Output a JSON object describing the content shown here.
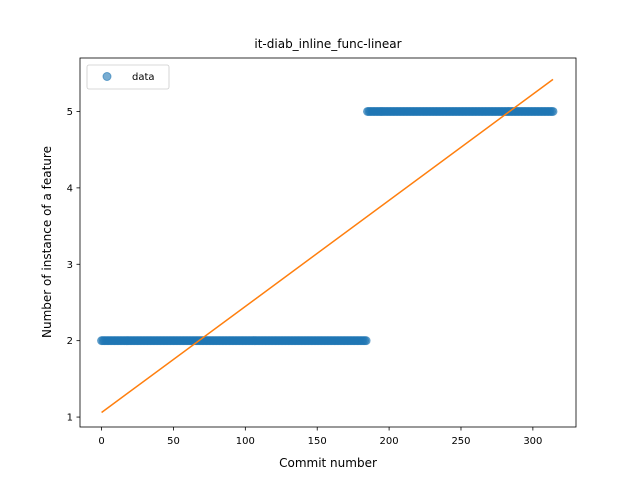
{
  "chart_data": {
    "type": "scatter",
    "title": "it-diab_inline_func-linear",
    "xlabel": "Commit number",
    "ylabel": "Number of instance of a feature",
    "xlim": [
      -15,
      330
    ],
    "ylim": [
      0.87,
      5.7
    ],
    "xticks": [
      0,
      50,
      100,
      150,
      200,
      250,
      300
    ],
    "yticks": [
      1,
      2,
      3,
      4,
      5
    ],
    "grid": false,
    "legend": {
      "position": "top-left",
      "entries": [
        "data"
      ]
    },
    "series": [
      {
        "name": "data",
        "kind": "scatter",
        "color": "#1f77b4",
        "segments": [
          {
            "x_start": 0,
            "x_end": 184,
            "y": 2
          },
          {
            "x_start": 185,
            "x_end": 314,
            "y": 5
          }
        ]
      },
      {
        "kind": "line",
        "color": "#ff7f0e",
        "x": [
          0,
          314
        ],
        "y": [
          1.06,
          5.42
        ]
      }
    ]
  }
}
